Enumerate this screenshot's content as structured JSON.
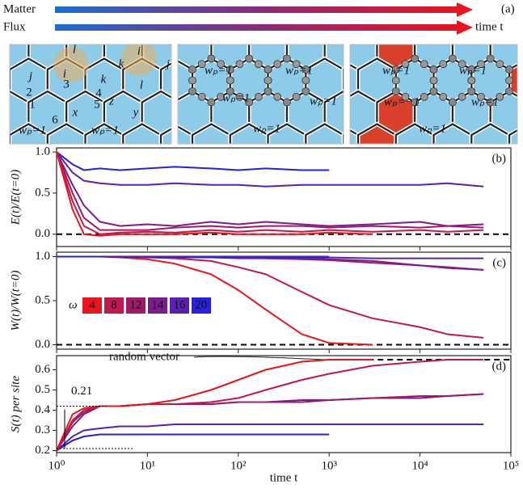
{
  "panel_a": {
    "label": "(a)",
    "arrows": [
      "Matter",
      "Flux"
    ],
    "time_label": "time t",
    "image1_labels": [
      "l",
      "i",
      "k",
      "j",
      "i",
      "k",
      "l",
      "j",
      "1",
      "2",
      "3",
      "4",
      "5",
      "6",
      "x",
      "z",
      "y",
      "wₚ=1",
      "wₚ=1"
    ],
    "image2_labels": [
      "wₚ=1",
      "wₚ=1",
      "wₚ=1",
      "wₚ=1",
      "wₚ=1"
    ],
    "image3_labels": [
      "wₚ=1",
      "wₚ=1",
      "wₚ=−1",
      "wₚ=1",
      "wₚ=1"
    ]
  },
  "chart_data": [
    {
      "type": "line",
      "label": "(b)",
      "ylabel": "E(t)/E(t=0)",
      "x": [
        1,
        1.5,
        2,
        3,
        5,
        10,
        20,
        50,
        100,
        200,
        500,
        1000,
        3000,
        10000,
        20000,
        50000
      ],
      "xlim": [
        1,
        100000
      ],
      "ylim": [
        -0.15,
        1.05
      ],
      "yticks": [
        {
          "value": 0,
          "label": "0.0"
        },
        {
          "value": 0.5,
          "label": "0.5"
        },
        {
          "value": 1,
          "label": "1.0"
        }
      ],
      "hline": 0,
      "series": [
        {
          "color": "#2a1ee0",
          "values": [
            1,
            0.85,
            0.78,
            0.8,
            0.78,
            0.8,
            0.82,
            0.8,
            0.78,
            0.8,
            0.78,
            0.78,
            null,
            null,
            null,
            null
          ]
        },
        {
          "color": "#5a20b0",
          "values": [
            1,
            0.75,
            0.65,
            0.62,
            0.6,
            0.6,
            0.62,
            0.6,
            0.6,
            0.58,
            0.6,
            0.6,
            0.6,
            0.6,
            0.62,
            0.58
          ]
        },
        {
          "color": "#7a1d8c",
          "values": [
            1,
            0.6,
            0.35,
            0.15,
            0.1,
            0.12,
            0.1,
            0.15,
            0.12,
            0.15,
            0.12,
            0.1,
            0.12,
            0.15,
            0.1,
            0.12
          ]
        },
        {
          "color": "#a01a6a",
          "values": [
            1,
            0.5,
            0.2,
            0.05,
            0.05,
            0.05,
            0.08,
            0.1,
            0.08,
            0.1,
            0.1,
            0.08,
            0.1,
            0.08,
            0.1,
            0.08
          ]
        },
        {
          "color": "#c0184f",
          "values": [
            1,
            0.4,
            0.1,
            0,
            0.02,
            0.03,
            0.02,
            0.05,
            0.03,
            0.05,
            0.03,
            0.05,
            0.03,
            0.05,
            0.03,
            0.05
          ]
        },
        {
          "color": "#e8141e",
          "values": [
            1,
            0.3,
            0,
            -0.02,
            0,
            0,
            0,
            0.02,
            0,
            0,
            0,
            0.02,
            0,
            null,
            null,
            null
          ]
        }
      ]
    },
    {
      "type": "line",
      "label": "(c)",
      "ylabel": "W(t)/W(t=0)",
      "x": [
        1,
        1.5,
        2,
        3,
        5,
        10,
        20,
        50,
        100,
        200,
        500,
        1000,
        3000,
        10000,
        20000,
        50000
      ],
      "xlim": [
        1,
        100000
      ],
      "ylim": [
        -0.05,
        1.05
      ],
      "yticks": [
        {
          "value": 0,
          "label": "0.0"
        },
        {
          "value": 0.5,
          "label": "0.5"
        },
        {
          "value": 1,
          "label": "1.0"
        }
      ],
      "hline": 0,
      "legend_title": "ω",
      "series": [
        {
          "name": "4",
          "color": "#e8141e",
          "values": [
            1,
            1,
            1,
            1,
            0.99,
            0.97,
            0.92,
            0.8,
            0.62,
            0.4,
            0.12,
            0.02,
            0,
            null,
            null,
            null
          ]
        },
        {
          "name": "8",
          "color": "#c0184f",
          "values": [
            1,
            1,
            1,
            1,
            1,
            0.99,
            0.98,
            0.95,
            0.88,
            0.8,
            0.6,
            0.45,
            0.3,
            0.2,
            0.12,
            0.08
          ]
        },
        {
          "name": "12",
          "color": "#a01a6a",
          "values": [
            1,
            1,
            1,
            1,
            1,
            1,
            0.99,
            0.99,
            0.98,
            0.98,
            0.97,
            0.96,
            0.93,
            0.9,
            0.88,
            0.85
          ]
        },
        {
          "name": "14",
          "color": "#7a1d8c",
          "values": [
            1,
            1,
            1,
            1,
            1,
            1,
            1,
            0.99,
            0.99,
            0.98,
            0.98,
            0.97,
            0.95,
            0.9,
            0.87,
            0.85
          ]
        },
        {
          "name": "16",
          "color": "#5a20b0",
          "values": [
            1,
            1,
            1,
            1,
            1,
            1,
            1,
            0.99,
            0.99,
            0.99,
            0.99,
            0.99,
            0.98,
            0.98,
            0.98,
            0.98
          ]
        },
        {
          "name": "20",
          "color": "#2a1ee0",
          "values": [
            1,
            1,
            1,
            1,
            1,
            1,
            1,
            1,
            1,
            1,
            1,
            1,
            null,
            null,
            null,
            null
          ]
        }
      ]
    },
    {
      "type": "line",
      "label": "(d)",
      "ylabel": "S(t) per site",
      "xlabel": "time t",
      "x": [
        1,
        1.5,
        2,
        3,
        5,
        10,
        20,
        50,
        100,
        200,
        500,
        1000,
        3000,
        10000,
        20000,
        50000
      ],
      "xlim": [
        1,
        100000
      ],
      "ylim": [
        0.19,
        0.67
      ],
      "xticks": [
        {
          "value": 1,
          "label": "10⁰"
        },
        {
          "value": 10,
          "label": "10¹"
        },
        {
          "value": 100,
          "label": "10²"
        },
        {
          "value": 1000,
          "label": "10³"
        },
        {
          "value": 10000,
          "label": "10⁴"
        },
        {
          "value": 100000,
          "label": "10⁵"
        }
      ],
      "yticks": [
        0.2,
        0.3,
        0.4,
        0.5,
        0.6
      ],
      "hline": 0.65,
      "hline_label": "random vector",
      "bracket": {
        "low": 0.21,
        "high": 0.42,
        "label": "0.21"
      },
      "series": [
        {
          "color": "#2a1ee0",
          "values": [
            0.2,
            0.25,
            0.27,
            0.28,
            0.28,
            0.28,
            0.28,
            0.28,
            0.28,
            0.28,
            0.28,
            0.28,
            null,
            null,
            null,
            null
          ]
        },
        {
          "color": "#5a20b0",
          "values": [
            0.2,
            0.27,
            0.3,
            0.31,
            0.32,
            0.32,
            0.33,
            0.33,
            0.33,
            0.33,
            0.33,
            0.33,
            0.33,
            0.33,
            0.33,
            0.33
          ]
        },
        {
          "color": "#7a1d8c",
          "values": [
            0.2,
            0.32,
            0.38,
            0.42,
            0.42,
            0.43,
            0.43,
            0.43,
            0.44,
            0.44,
            0.45,
            0.45,
            0.46,
            0.46,
            0.47,
            0.48
          ]
        },
        {
          "color": "#a01a6a",
          "values": [
            0.2,
            0.34,
            0.39,
            0.42,
            0.42,
            0.43,
            0.43,
            0.43,
            0.44,
            0.44,
            0.44,
            0.45,
            0.46,
            0.47,
            0.47,
            0.48
          ]
        },
        {
          "color": "#c0184f",
          "values": [
            0.2,
            0.35,
            0.4,
            0.42,
            0.42,
            0.43,
            0.43,
            0.44,
            0.46,
            0.5,
            0.55,
            0.58,
            0.62,
            0.64,
            0.65,
            0.65
          ]
        },
        {
          "color": "#e8141e",
          "values": [
            0.2,
            0.38,
            0.41,
            0.42,
            0.42,
            0.43,
            0.45,
            0.5,
            0.55,
            0.6,
            0.64,
            0.65,
            0.65,
            null,
            null,
            null
          ]
        }
      ]
    }
  ]
}
